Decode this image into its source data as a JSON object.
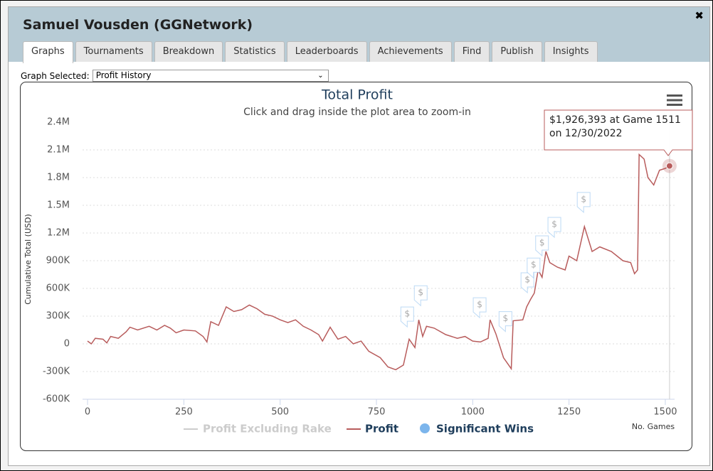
{
  "window": {
    "title": "Samuel Vousden (GGNetwork)",
    "tabs": [
      "Graphs",
      "Tournaments",
      "Breakdown",
      "Statistics",
      "Leaderboards",
      "Achievements",
      "Find",
      "Publish",
      "Insights"
    ],
    "graph_selector": {
      "label": "Graph Selected:",
      "value": "Profit History"
    }
  },
  "chart_data": {
    "type": "line",
    "title": "Total Profit",
    "subtitle": "Click and drag inside the plot area to zoom-in",
    "y_label": "Cumulative Total (USD)",
    "x_label": "No. Games",
    "xlim": [
      -13,
      1525
    ],
    "xticks": [
      0,
      250,
      500,
      750,
      1000,
      1250,
      1500
    ],
    "ylim": [
      -600000,
      2400000
    ],
    "yticks": [
      {
        "value": -600000,
        "label": "-600K"
      },
      {
        "value": -300000,
        "label": "-300K"
      },
      0,
      {
        "value": 300000,
        "label": "300K"
      },
      {
        "value": 600000,
        "label": "600K"
      },
      {
        "value": 900000,
        "label": "900K"
      },
      {
        "value": 1200000,
        "label": "1.2M"
      },
      {
        "value": 1500000,
        "label": "1.5M"
      },
      {
        "value": 1800000,
        "label": "1.8M"
      },
      {
        "value": 2100000,
        "label": "2.1M"
      },
      {
        "value": 2400000,
        "label": "2.4M"
      }
    ],
    "grid": true,
    "hidden_series": [
      {
        "name": "Profit Excluding Rake",
        "color": "#cccccc"
      }
    ],
    "series": [
      {
        "name": "Profit",
        "color": "#b85c5c",
        "x": [
          0,
          10,
          20,
          40,
          50,
          60,
          80,
          100,
          110,
          130,
          160,
          180,
          200,
          215,
          230,
          250,
          280,
          300,
          310,
          320,
          340,
          360,
          380,
          400,
          420,
          440,
          460,
          480,
          500,
          520,
          540,
          560,
          580,
          600,
          610,
          630,
          650,
          670,
          690,
          710,
          730,
          760,
          780,
          800,
          820,
          835,
          850,
          860,
          870,
          880,
          900,
          930,
          960,
          980,
          1000,
          1020,
          1040,
          1045,
          1060,
          1080,
          1100,
          1105,
          1130,
          1140,
          1150,
          1160,
          1170,
          1180,
          1190,
          1200,
          1220,
          1240,
          1250,
          1270,
          1290,
          1310,
          1330,
          1360,
          1390,
          1410,
          1420,
          1428,
          1432,
          1445,
          1455,
          1470,
          1485,
          1500,
          1511
        ],
        "values": [
          30000,
          0,
          60000,
          50000,
          10000,
          80000,
          60000,
          130000,
          180000,
          150000,
          190000,
          150000,
          200000,
          170000,
          120000,
          150000,
          140000,
          80000,
          20000,
          240000,
          200000,
          400000,
          350000,
          370000,
          420000,
          380000,
          320000,
          300000,
          260000,
          230000,
          260000,
          190000,
          150000,
          100000,
          30000,
          180000,
          50000,
          80000,
          0,
          30000,
          -80000,
          -150000,
          -250000,
          -280000,
          -230000,
          50000,
          -40000,
          260000,
          80000,
          190000,
          170000,
          100000,
          60000,
          80000,
          30000,
          20000,
          60000,
          260000,
          110000,
          -150000,
          -270000,
          250000,
          260000,
          400000,
          480000,
          550000,
          800000,
          720000,
          1000000,
          880000,
          830000,
          800000,
          950000,
          900000,
          1270000,
          1000000,
          1050000,
          1000000,
          900000,
          880000,
          760000,
          800000,
          2050000,
          2000000,
          1800000,
          1720000,
          1880000,
          1900000,
          1926393
        ]
      },
      {
        "name": "Significant Wins",
        "color": "#7cb5ec",
        "x": [
          830,
          865,
          1018,
          1085,
          1142,
          1158,
          1180,
          1212,
          1288
        ],
        "values": [
          30000,
          260000,
          130000,
          -20000,
          400000,
          560000,
          800000,
          1000000,
          1270000
        ]
      }
    ],
    "tooltip": "$1,926,393 at Game 1511 on 12/30/2022"
  }
}
